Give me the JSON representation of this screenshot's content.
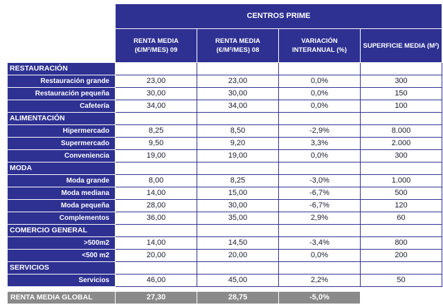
{
  "header": {
    "title": "CENTROS PRIME",
    "columns": [
      {
        "line1": "RENTA MEDIA",
        "line2": "(€/M²/MES) 09"
      },
      {
        "line1": "RENTA MEDIA",
        "line2": "(€/M²/MES) 08"
      },
      {
        "line1": "VARIACIÓN",
        "line2": "INTERANUAL (%)"
      },
      {
        "line1": "SUPERFICIE MEDIA (M²)",
        "line2": ""
      }
    ]
  },
  "sections": [
    {
      "name": "RESTAURACIÓN",
      "rows": [
        {
          "label": "Restauración grande",
          "v09": "23,00",
          "v08": "23,00",
          "var": "0,0%",
          "sup": "300"
        },
        {
          "label": "Restauración pequeña",
          "v09": "30,00",
          "v08": "30,00",
          "var": "0,0%",
          "sup": "150"
        },
        {
          "label": "Cafetería",
          "v09": "34,00",
          "v08": "34,00",
          "var": "0,0%",
          "sup": "100"
        }
      ]
    },
    {
      "name": "ALIMENTACIÓN",
      "rows": [
        {
          "label": "Hipermercado",
          "v09": "8,25",
          "v08": "8,50",
          "var": "-2,9%",
          "sup": "8.000"
        },
        {
          "label": "Supermercado",
          "v09": "9,50",
          "v08": "9,20",
          "var": "3,3%",
          "sup": "2.000"
        },
        {
          "label": "Conveniencia",
          "v09": "19,00",
          "v08": "19,00",
          "var": "0,0%",
          "sup": "300"
        }
      ]
    },
    {
      "name": "MODA",
      "rows": [
        {
          "label": "Moda grande",
          "v09": "8,00",
          "v08": "8,25",
          "var": "-3,0%",
          "sup": "1.000"
        },
        {
          "label": "Moda mediana",
          "v09": "14,00",
          "v08": "15,00",
          "var": "-6,7%",
          "sup": "500"
        },
        {
          "label": "Moda pequeña",
          "v09": "28,00",
          "v08": "30,00",
          "var": "-6,7%",
          "sup": "120"
        },
        {
          "label": "Complementos",
          "v09": "36,00",
          "v08": "35,00",
          "var": "2,9%",
          "sup": "60"
        }
      ]
    },
    {
      "name": "COMERCIO GENERAL",
      "rows": [
        {
          "label": ">500m2",
          "v09": "14,00",
          "v08": "14,50",
          "var": "-3,4%",
          "sup": "800"
        },
        {
          "label": "<500 m2",
          "v09": "20,00",
          "v08": "20,00",
          "var": "0,0%",
          "sup": "200"
        }
      ]
    },
    {
      "name": "SERVICIOS",
      "rows": [
        {
          "label": "Servicios",
          "v09": "46,00",
          "v08": "45,00",
          "var": "2,2%",
          "sup": "50"
        }
      ]
    }
  ],
  "total": {
    "label": "RENTA MEDIA GLOBAL",
    "v09": "27,30",
    "v08": "28,75",
    "var": "-5,0%"
  }
}
